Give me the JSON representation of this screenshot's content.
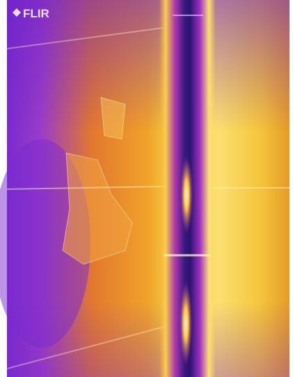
{
  "logo": "FLIR"
}
